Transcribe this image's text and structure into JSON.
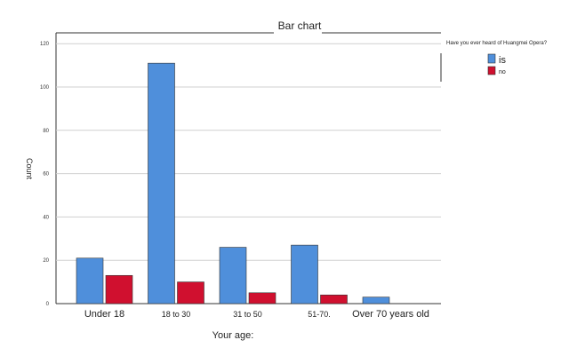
{
  "chart_data": {
    "type": "bar",
    "title": "Bar chart",
    "xlabel": "Your age:",
    "ylabel": "Count",
    "categories": [
      "Under 18",
      "18 to 30",
      "31 to 50",
      "51-70.",
      "Over 70 years old"
    ],
    "series": [
      {
        "name": "is",
        "color": "#4f8fdb",
        "values": [
          21,
          111,
          26,
          27,
          3
        ]
      },
      {
        "name": "no",
        "color": "#d0102f",
        "values": [
          13,
          10,
          5,
          4,
          0
        ]
      }
    ],
    "ylim": [
      0,
      125
    ],
    "yticks": [
      "0",
      "20",
      "40",
      "60",
      "80",
      "100",
      "120"
    ],
    "grid": true,
    "legend": {
      "title": "Have you ever heard of Huangmei Opera?",
      "placement": "right"
    }
  }
}
